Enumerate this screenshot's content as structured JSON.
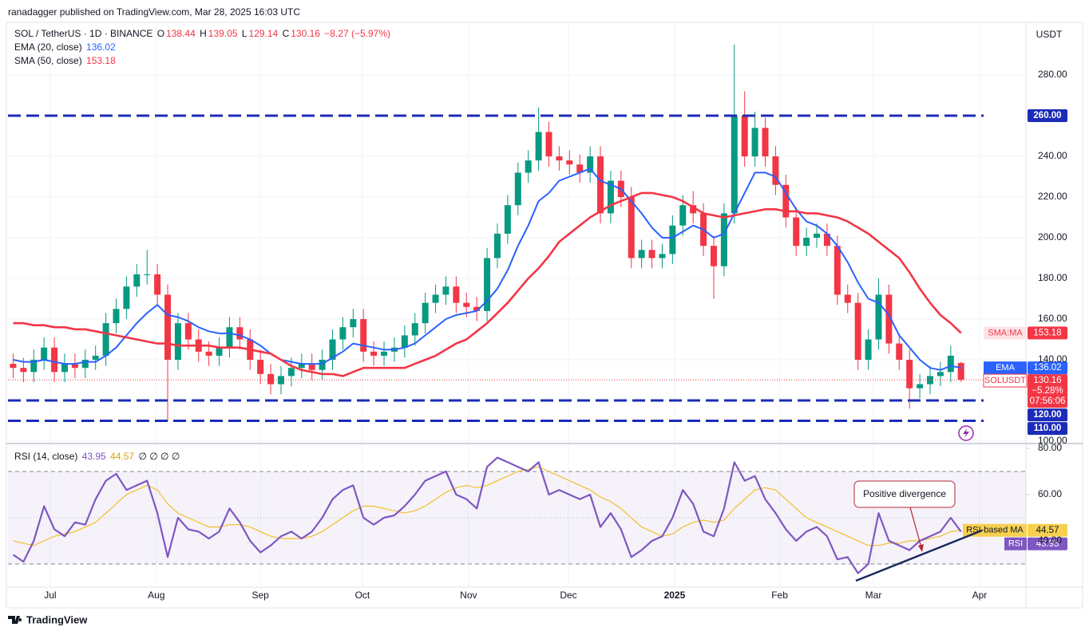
{
  "header": {
    "attribution": "ranadagger published on TradingView.com, Mar 28, 2025 16:03 UTC"
  },
  "footer": {
    "brand": "TradingView"
  },
  "chart_data": [
    {
      "type": "candlestick",
      "symbol": "SOL / TetherUS · 1D · BINANCE",
      "currency": "USDT",
      "ohlc_labels": [
        "O",
        "H",
        "L",
        "C"
      ],
      "change": "−8.27 (−5.97%)",
      "open": [
        138,
        136,
        134,
        140,
        146,
        134,
        138,
        136,
        140,
        142,
        158,
        165,
        176,
        182,
        182,
        172,
        140,
        158,
        150,
        144,
        142,
        146,
        156,
        150,
        140,
        133,
        128,
        132,
        136,
        138,
        135,
        140,
        150,
        156,
        160,
        144,
        142,
        144,
        146,
        152,
        158,
        168,
        172,
        176,
        168,
        166,
        164,
        190,
        202,
        216,
        232,
        238,
        252,
        240,
        238,
        236,
        232,
        240,
        212,
        228,
        220,
        190,
        194,
        190,
        192,
        206,
        216,
        212,
        196,
        186,
        212,
        260,
        240,
        254,
        240,
        226,
        210,
        196,
        200,
        202,
        196,
        172,
        168,
        140,
        150,
        172,
        148,
        140,
        126,
        128,
        132,
        134,
        138.44
      ],
      "high": [
        143,
        141,
        145,
        151,
        151,
        143,
        143,
        145,
        147,
        163,
        170,
        181,
        187,
        194,
        187,
        177,
        163,
        163,
        155,
        149,
        151,
        161,
        161,
        155,
        145,
        138,
        137,
        141,
        143,
        143,
        145,
        155,
        161,
        165,
        165,
        149,
        149,
        151,
        157,
        163,
        173,
        177,
        181,
        181,
        173,
        171,
        195,
        207,
        221,
        237,
        243,
        264,
        257,
        245,
        243,
        241,
        245,
        245,
        233,
        233,
        225,
        199,
        199,
        197,
        211,
        221,
        223,
        217,
        201,
        217,
        295,
        272,
        262,
        259,
        245,
        231,
        215,
        205,
        207,
        207,
        201,
        177,
        173,
        155,
        180,
        177,
        153,
        145,
        133,
        137,
        139,
        147,
        139.05
      ],
      "low": [
        131,
        129,
        129,
        135,
        129,
        129,
        131,
        131,
        135,
        137,
        153,
        160,
        171,
        177,
        167,
        110,
        135,
        145,
        139,
        137,
        137,
        141,
        145,
        135,
        128,
        123,
        123,
        127,
        131,
        130,
        130,
        135,
        145,
        151,
        139,
        137,
        137,
        139,
        141,
        147,
        153,
        163,
        167,
        163,
        161,
        159,
        159,
        185,
        197,
        211,
        227,
        233,
        235,
        233,
        231,
        227,
        227,
        207,
        207,
        215,
        185,
        185,
        185,
        185,
        187,
        201,
        207,
        191,
        170,
        181,
        207,
        235,
        235,
        235,
        221,
        205,
        191,
        191,
        195,
        191,
        167,
        163,
        135,
        135,
        145,
        143,
        135,
        116,
        121,
        123,
        127,
        129,
        129.14
      ],
      "close": [
        136,
        134,
        140,
        146,
        134,
        138,
        136,
        140,
        142,
        158,
        165,
        176,
        182,
        182,
        172,
        140,
        158,
        150,
        144,
        142,
        146,
        156,
        150,
        140,
        133,
        128,
        132,
        136,
        138,
        135,
        140,
        150,
        156,
        160,
        144,
        142,
        144,
        146,
        152,
        158,
        168,
        172,
        176,
        168,
        166,
        164,
        190,
        202,
        216,
        232,
        238,
        252,
        240,
        238,
        236,
        232,
        240,
        212,
        228,
        220,
        190,
        194,
        190,
        192,
        206,
        216,
        212,
        196,
        186,
        212,
        260,
        240,
        254,
        240,
        226,
        210,
        196,
        200,
        202,
        196,
        172,
        168,
        140,
        150,
        172,
        148,
        140,
        126,
        128,
        132,
        134,
        142,
        130.16
      ],
      "up_color": "#089981",
      "down_color": "#f23645",
      "series": [
        {
          "name": "EMA (20, close)",
          "tag": "EMA",
          "color": "#2962ff",
          "values": [
            140,
            139,
            139,
            140,
            139,
            138,
            138,
            139,
            139,
            142,
            146,
            152,
            158,
            163,
            167,
            162,
            161,
            159,
            156,
            154,
            153,
            153,
            152,
            150,
            147,
            143,
            140,
            139,
            138,
            138,
            138,
            141,
            144,
            148,
            147,
            146,
            145,
            145,
            146,
            148,
            152,
            156,
            160,
            162,
            163,
            164,
            169,
            175,
            184,
            196,
            206,
            218,
            222,
            228,
            230,
            232,
            234,
            228,
            226,
            224,
            218,
            212,
            205,
            200,
            200,
            203,
            206,
            204,
            200,
            202,
            212,
            222,
            232,
            232,
            230,
            222,
            214,
            208,
            206,
            202,
            196,
            188,
            178,
            170,
            168,
            162,
            152,
            146,
            140,
            136,
            135,
            137,
            136.02
          ]
        },
        {
          "name": "SMA (50, close)",
          "tag": "SMA:MA",
          "color": "#f23645",
          "values": [
            158,
            158,
            157,
            157,
            156,
            156,
            155,
            155,
            154,
            153,
            152,
            151,
            150,
            149,
            148,
            148,
            147,
            147,
            147,
            147,
            146,
            146,
            146,
            145,
            144,
            143,
            140,
            137,
            135,
            134,
            133,
            133,
            132,
            134,
            136,
            136,
            136,
            136,
            136,
            138,
            140,
            142,
            145,
            148,
            150,
            154,
            158,
            163,
            168,
            174,
            180,
            185,
            191,
            198,
            202,
            206,
            210,
            213,
            216,
            218,
            220,
            222,
            222,
            221,
            220,
            218,
            215,
            212,
            211,
            210,
            211,
            212,
            213,
            214,
            214,
            213,
            213,
            212,
            212,
            211,
            210,
            208,
            205,
            202,
            198,
            194,
            190,
            183,
            175,
            168,
            162,
            158,
            153.18
          ]
        }
      ],
      "price_tag": {
        "name": "SOLUSDT",
        "change": "−5.28%",
        "countdown": "07:56:06"
      },
      "levels": [
        {
          "value": 260,
          "label": "260.00"
        },
        {
          "value": 120,
          "label": "120.00"
        },
        {
          "value": 110,
          "label": "110.00"
        }
      ],
      "level_color": "#1c2bb8",
      "xlim": [
        -0.5,
        98.3
      ],
      "xticks": [
        {
          "value": 3.6,
          "label": "Jul"
        },
        {
          "value": 13.9,
          "label": "Aug"
        },
        {
          "value": 24,
          "label": "Sep"
        },
        {
          "value": 33.9,
          "label": "Oct"
        },
        {
          "value": 44.2,
          "label": "Nov"
        },
        {
          "value": 53.9,
          "label": "Dec"
        },
        {
          "value": 64.2,
          "label": "2025"
        },
        {
          "value": 74.4,
          "label": "Feb"
        },
        {
          "value": 83.5,
          "label": "Mar"
        },
        {
          "value": 93.8,
          "label": "Apr"
        }
      ],
      "ylim": [
        100,
        305
      ],
      "yticks": [
        {
          "value": 100,
          "label": "100.00"
        },
        {
          "value": 140,
          "label": "140.00"
        },
        {
          "value": 160,
          "label": "160.00"
        },
        {
          "value": 180,
          "label": "180.00"
        },
        {
          "value": 200,
          "label": "200.00"
        },
        {
          "value": 220,
          "label": "220.00"
        },
        {
          "value": 240,
          "label": "240.00"
        },
        {
          "value": 280,
          "label": "280.00"
        }
      ],
      "grid": true
    },
    {
      "type": "line",
      "title": "RSI (14, close)",
      "extras": "∅ ∅ ∅ ∅",
      "series": [
        {
          "name": "RSI",
          "color": "#7e57c2",
          "values": [
            34,
            31,
            40,
            55,
            45,
            42,
            48,
            47,
            58,
            66,
            69,
            62,
            64,
            66,
            52,
            33,
            50,
            45,
            44,
            41,
            44,
            54,
            48,
            40,
            35,
            38,
            42,
            44,
            41,
            44,
            50,
            58,
            62,
            64,
            50,
            47,
            50,
            51,
            55,
            60,
            66,
            68,
            70,
            60,
            58,
            54,
            72,
            76,
            74,
            72,
            70,
            74,
            60,
            62,
            60,
            58,
            60,
            46,
            52,
            45,
            33,
            36,
            40,
            42,
            50,
            62,
            56,
            44,
            42,
            54,
            74,
            66,
            68,
            58,
            52,
            45,
            40,
            44,
            46,
            42,
            32,
            33,
            26,
            30,
            52,
            40,
            38,
            36,
            40,
            42,
            44,
            50,
            43.95
          ]
        },
        {
          "name": "RSI-based MA",
          "color": "#f2c029",
          "values": [
            40,
            39,
            38,
            40,
            42,
            43,
            44,
            46,
            48,
            52,
            56,
            60,
            62,
            64,
            62,
            56,
            52,
            50,
            48,
            46,
            46,
            47,
            47,
            46,
            44,
            42,
            41,
            41,
            41,
            42,
            44,
            47,
            50,
            53,
            55,
            55,
            54,
            53,
            52,
            53,
            55,
            58,
            61,
            63,
            64,
            63,
            64,
            66,
            68,
            70,
            71,
            72,
            70,
            68,
            66,
            64,
            62,
            59,
            57,
            54,
            50,
            46,
            44,
            42,
            43,
            46,
            48,
            49,
            48,
            49,
            54,
            58,
            62,
            63,
            62,
            58,
            54,
            50,
            48,
            46,
            44,
            42,
            40,
            38,
            38,
            39,
            39,
            40,
            40,
            41,
            42,
            44,
            44.57
          ]
        }
      ],
      "bands": [
        70,
        50,
        30
      ],
      "annotation": "Positive divergence",
      "xlim": [
        -0.5,
        98.3
      ],
      "ylim": [
        20,
        82
      ],
      "yticks": [
        {
          "value": 40,
          "label": "40.00"
        },
        {
          "value": 60,
          "label": "60.00"
        },
        {
          "value": 80,
          "label": "80.00"
        }
      ],
      "grid": true
    }
  ]
}
